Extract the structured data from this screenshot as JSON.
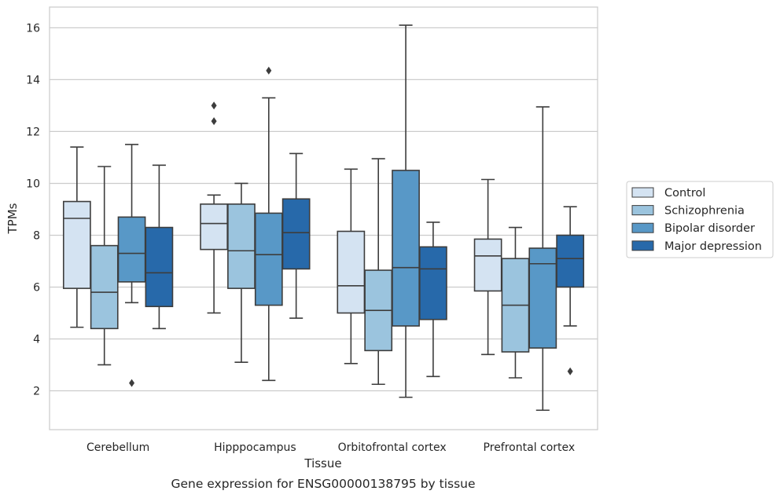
{
  "chart_data": {
    "type": "box",
    "title": "",
    "caption": "Gene expression for ENSG00000138795 by tissue",
    "xlabel": "Tissue",
    "ylabel": "TPMs",
    "ylim": [
      0.5,
      16.8
    ],
    "yticks": [
      2,
      4,
      6,
      8,
      10,
      12,
      14,
      16
    ],
    "grid": "horizontal",
    "legend_position": "right",
    "categories": [
      "Cerebellum",
      "Hipppocampus",
      "Orbitofrontal cortex",
      "Prefrontal cortex"
    ],
    "series": [
      {
        "name": "Control",
        "color": "#d4e3f2",
        "boxes": [
          {
            "whisker_low": 4.45,
            "q1": 5.95,
            "median": 8.65,
            "q3": 9.3,
            "whisker_high": 11.4,
            "outliers": []
          },
          {
            "whisker_low": 5.0,
            "q1": 7.45,
            "median": 8.45,
            "q3": 9.2,
            "whisker_high": 9.55,
            "outliers": [
              12.4,
              13.0
            ]
          },
          {
            "whisker_low": 3.05,
            "q1": 5.0,
            "median": 6.05,
            "q3": 8.15,
            "whisker_high": 10.55,
            "outliers": []
          },
          {
            "whisker_low": 3.4,
            "q1": 5.85,
            "median": 7.2,
            "q3": 7.85,
            "whisker_high": 10.15,
            "outliers": []
          }
        ]
      },
      {
        "name": "Schizophrenia",
        "color": "#9bc4de",
        "boxes": [
          {
            "whisker_low": 3.0,
            "q1": 4.4,
            "median": 5.8,
            "q3": 7.6,
            "whisker_high": 10.65,
            "outliers": []
          },
          {
            "whisker_low": 3.1,
            "q1": 5.95,
            "median": 7.4,
            "q3": 9.2,
            "whisker_high": 10.0,
            "outliers": []
          },
          {
            "whisker_low": 2.25,
            "q1": 3.55,
            "median": 5.1,
            "q3": 6.65,
            "whisker_high": 10.95,
            "outliers": []
          },
          {
            "whisker_low": 2.5,
            "q1": 3.5,
            "median": 5.3,
            "q3": 7.1,
            "whisker_high": 8.3,
            "outliers": []
          }
        ]
      },
      {
        "name": "Bipolar disorder",
        "color": "#5898c7",
        "boxes": [
          {
            "whisker_low": 5.4,
            "q1": 6.2,
            "median": 7.3,
            "q3": 8.7,
            "whisker_high": 11.5,
            "outliers": [
              2.3
            ]
          },
          {
            "whisker_low": 2.4,
            "q1": 5.3,
            "median": 7.25,
            "q3": 8.85,
            "whisker_high": 13.3,
            "outliers": [
              14.35
            ]
          },
          {
            "whisker_low": 1.75,
            "q1": 4.5,
            "median": 6.75,
            "q3": 10.5,
            "whisker_high": 16.1,
            "outliers": []
          },
          {
            "whisker_low": 1.25,
            "q1": 3.65,
            "median": 6.9,
            "q3": 7.5,
            "whisker_high": 12.95,
            "outliers": []
          }
        ]
      },
      {
        "name": "Major depression",
        "color": "#2769aa",
        "boxes": [
          {
            "whisker_low": 4.4,
            "q1": 5.25,
            "median": 6.55,
            "q3": 8.3,
            "whisker_high": 10.7,
            "outliers": []
          },
          {
            "whisker_low": 4.8,
            "q1": 6.7,
            "median": 8.1,
            "q3": 9.4,
            "whisker_high": 11.15,
            "outliers": []
          },
          {
            "whisker_low": 2.55,
            "q1": 4.75,
            "median": 6.7,
            "q3": 7.55,
            "whisker_high": 8.5,
            "outliers": []
          },
          {
            "whisker_low": 4.5,
            "q1": 6.0,
            "median": 7.1,
            "q3": 8.0,
            "whisker_high": 9.1,
            "outliers": [
              2.75
            ]
          }
        ]
      }
    ]
  }
}
